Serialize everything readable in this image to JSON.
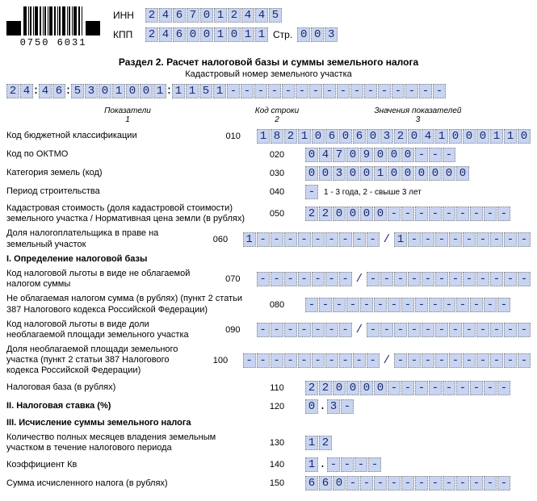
{
  "header": {
    "barcode_number": "0750 6031",
    "inn_label": "ИНН",
    "inn": "2467012445",
    "kpp_label": "КПП",
    "kpp": "246001011",
    "page_label": "Стр.",
    "page": "003"
  },
  "section": {
    "title": "Раздел 2. Расчет налоговой базы и суммы земельного налога",
    "subtitle": "Кадастровый номер земельного участка",
    "cadastral": "24:46:5301001:1151----------------"
  },
  "columns": {
    "c1": "Показатели",
    "c1n": "1",
    "c2": "Код строки",
    "c2n": "2",
    "c3": "Значения показателей",
    "c3n": "3"
  },
  "rows": [
    {
      "label": "Код бюджетной классификации",
      "code": "010",
      "cells": "18210606032041000110"
    },
    {
      "label": "Код по ОКТМО",
      "code": "020",
      "cells": "04709000---"
    },
    {
      "label": "Категория земель (код)",
      "code": "030",
      "cells": "003001000000"
    },
    {
      "label": "Период строительства",
      "code": "040",
      "cells": "-",
      "note": "1 - 3 года, 2 - свыше 3 лет"
    },
    {
      "label": "Кадастровая стоимость (доля кадастровой стоимости) земельного участка / Нормативная цена земли (в рублях)",
      "code": "050",
      "cells": "220000---------"
    },
    {
      "label": "Доля налогоплательщика в праве на земельный участок",
      "code": "060",
      "cells_a": "1---------",
      "slash": true,
      "cells_b": "1---------"
    },
    {
      "label": "I. Определение налоговой базы",
      "bold": true
    },
    {
      "label": "Код налоговой льготы в виде не облагаемой налогом суммы",
      "code": "070",
      "cells_a": "-------",
      "slash": true,
      "cells_b": "------------"
    },
    {
      "label": "Не облагаемая налогом сумма (в рублях) (пункт 2 статьи 387 Налогового кодекса Российской Федерации)",
      "code": "080",
      "cells": "---------------"
    },
    {
      "label": "Код налоговой льготы в виде доли необлагаемой площади земельного участка",
      "code": "090",
      "cells_a": "-------",
      "slash": true,
      "cells_b": "------------"
    },
    {
      "label": "Доля необлагаемой площади земельного участка (пункт 2 статьи 387 Налогового кодекса Российской Федерации)",
      "code": "100",
      "cells_a": "----------",
      "slash": true,
      "cells_b": "----------"
    },
    {
      "label": "Налоговая база (в рублях)",
      "code": "110",
      "cells": "220000---------"
    },
    {
      "label": "II. Налоговая ставка (%)",
      "bold": true,
      "code": "120",
      "cells_dot": [
        "0",
        "3-"
      ]
    },
    {
      "label": "III. Исчисление суммы земельного налога",
      "bold": true
    },
    {
      "label": "Количество полных месяцев владения земельным участком в течение налогового периода",
      "code": "130",
      "cells": "12"
    },
    {
      "label": "Коэффициент Кв",
      "code": "140",
      "cells_dot": [
        "1",
        "----"
      ]
    },
    {
      "label": "Сумма исчисленного налога (в рублях)",
      "code": "150",
      "cells": "660------------"
    }
  ]
}
